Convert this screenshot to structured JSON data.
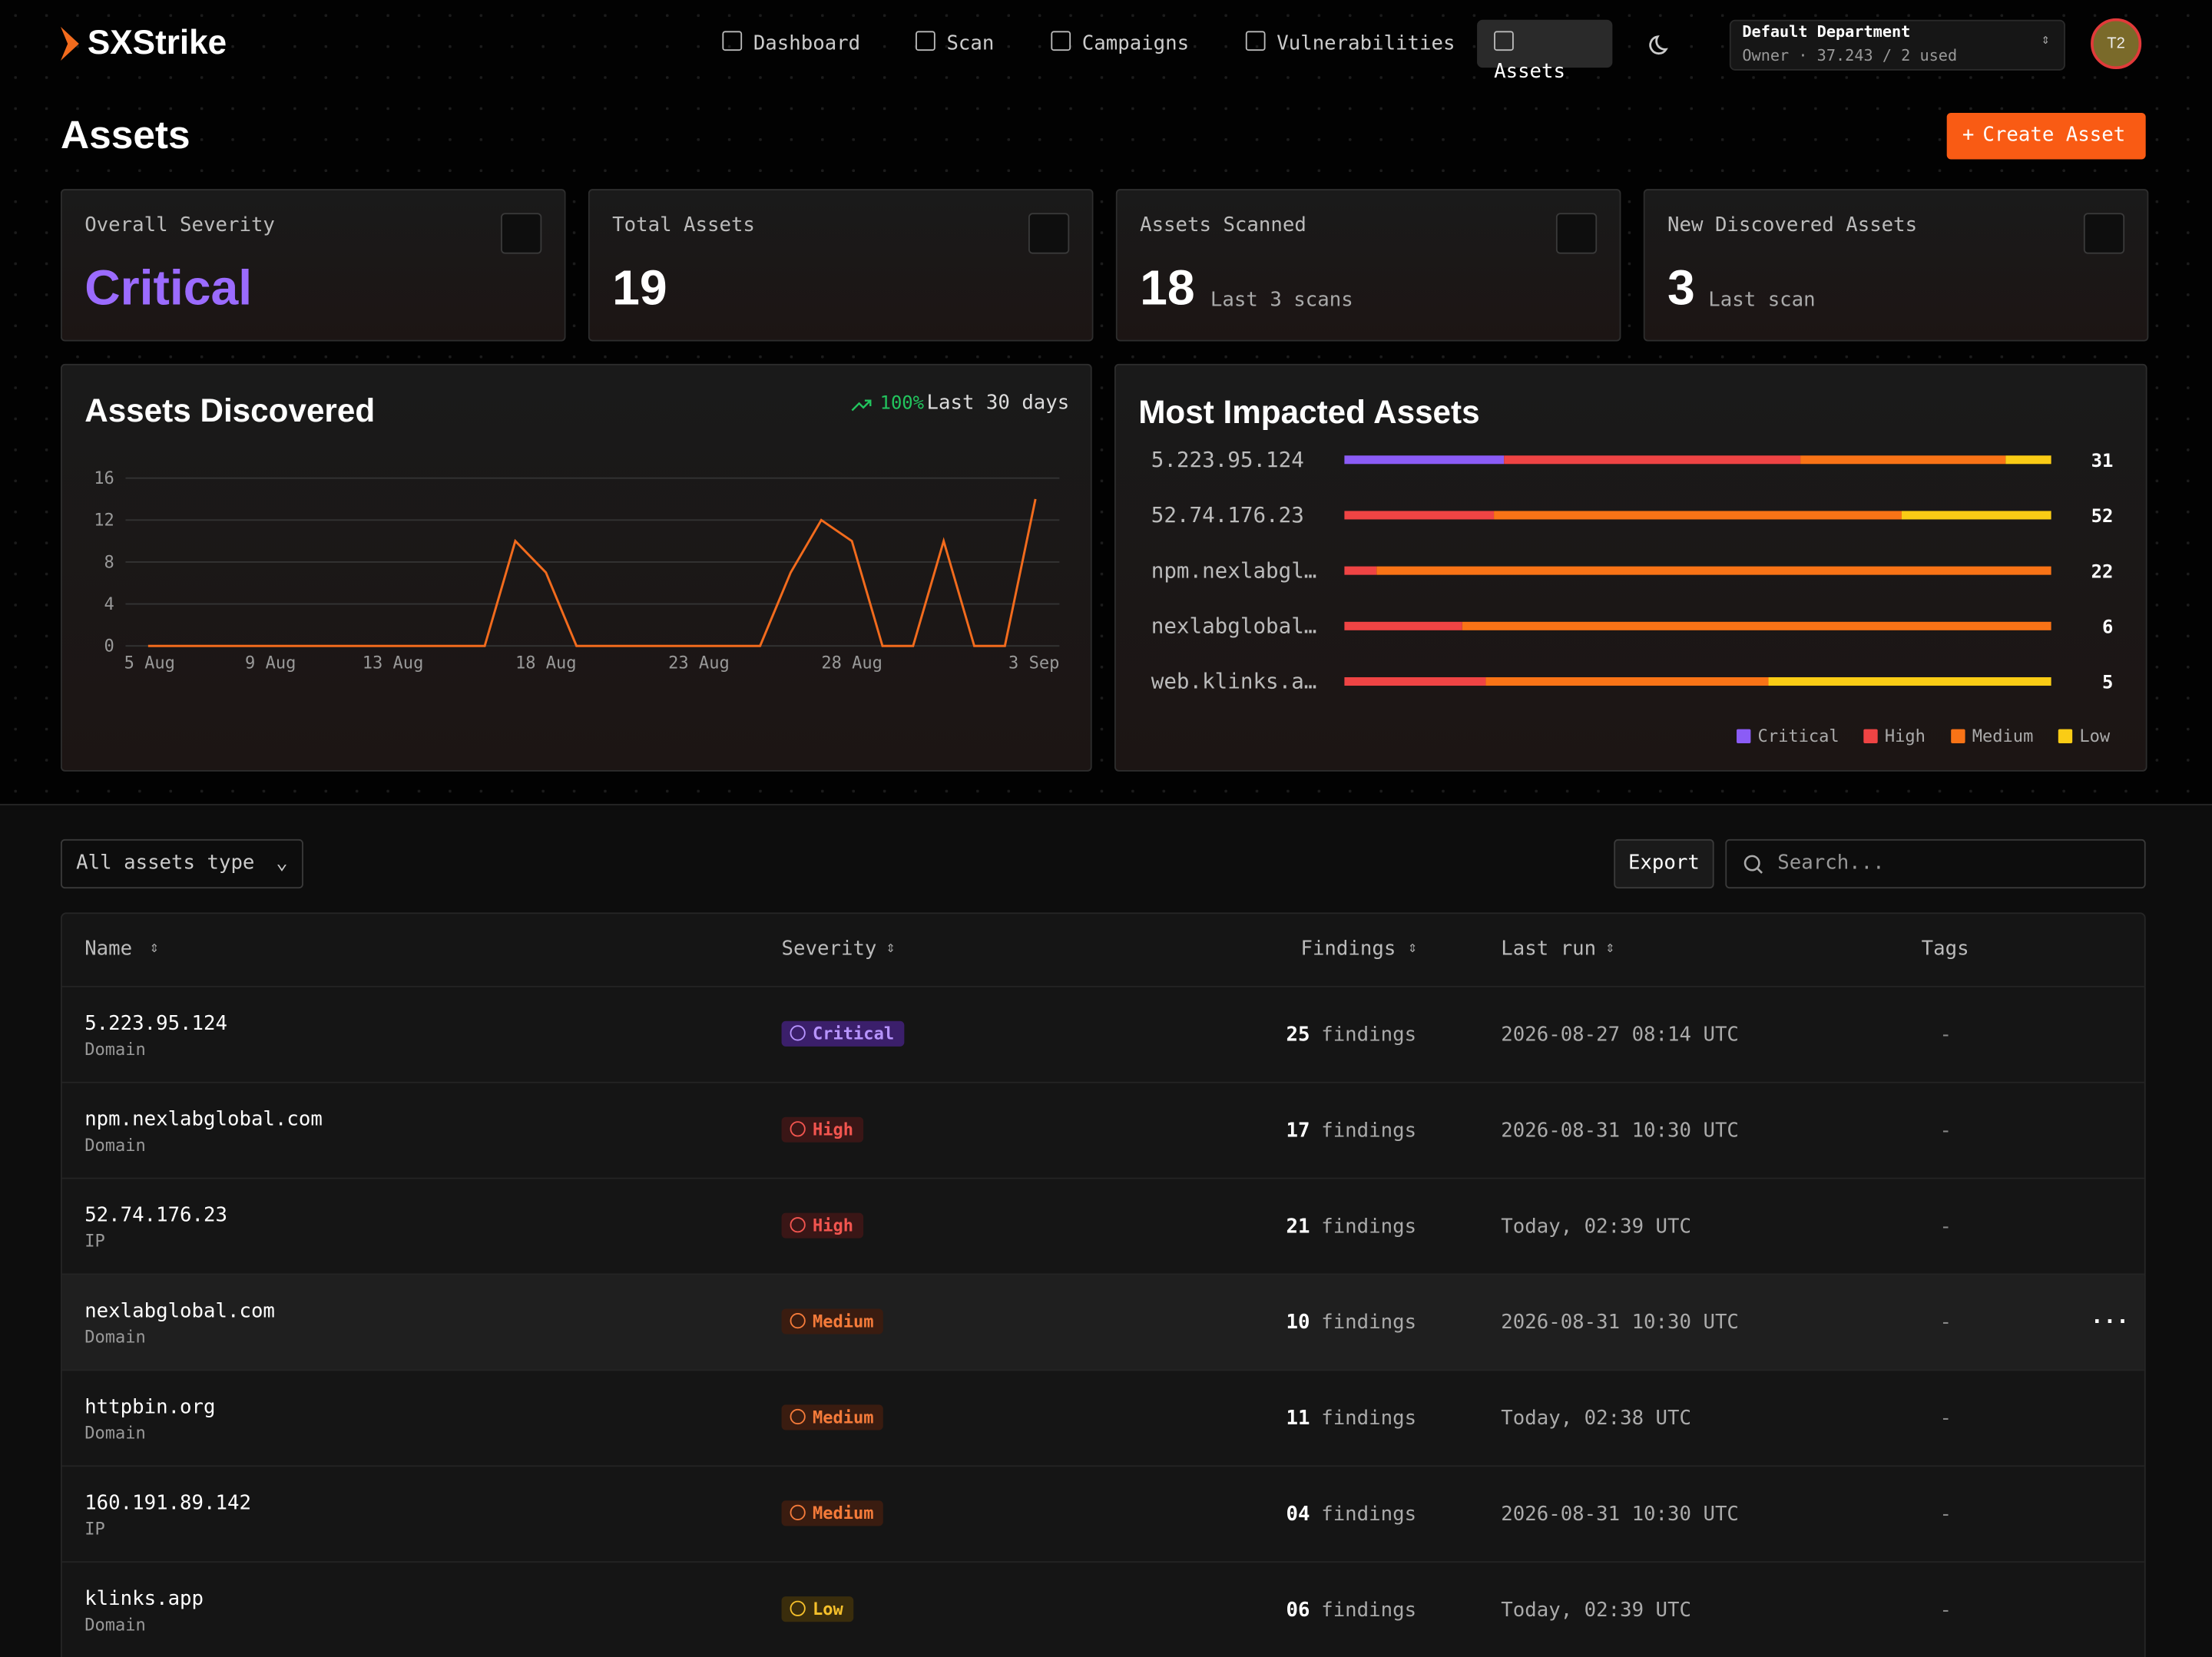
{
  "header": {
    "logo": "SXStrike",
    "nav": [
      "Dashboard",
      "Scan",
      "Campaigns",
      "Vulnerabilities",
      "Assets"
    ],
    "active_nav": "Assets",
    "department": "Default Department",
    "department_info": "Owner · 37.243 / 2 used",
    "avatar": "T2"
  },
  "page": {
    "title": "Assets",
    "create_button": "Create Asset"
  },
  "stats": [
    {
      "label": "Overall Severity",
      "value": "Critical"
    },
    {
      "label": "Total Assets",
      "value": "19"
    },
    {
      "label": "Assets Scanned",
      "value": "18",
      "note": "Last 3 scans"
    },
    {
      "label": "New Discovered Assets",
      "value": "3",
      "note": "Last scan"
    }
  ],
  "chart_data": [
    {
      "type": "line",
      "title": "Assets Discovered",
      "trend": "100%",
      "trend_note": "Last 30 days",
      "color": "#f26b1d",
      "categories": [
        "5 Aug",
        null,
        null,
        null,
        "9 Aug",
        null,
        null,
        null,
        "13 Aug",
        null,
        null,
        null,
        null,
        "18 Aug",
        null,
        null,
        null,
        null,
        "23 Aug",
        null,
        null,
        null,
        null,
        "28 Aug",
        null,
        null,
        null,
        null,
        null,
        "3 Sep"
      ],
      "values": [
        0,
        0,
        0,
        0,
        0,
        0,
        0,
        0,
        0,
        0,
        0,
        0,
        10,
        7,
        0,
        0,
        0,
        0,
        0,
        0,
        0,
        7,
        12,
        10,
        0,
        0,
        10,
        0,
        0,
        14
      ],
      "ylim": [
        0,
        16
      ],
      "yticks": [
        0,
        4,
        8,
        12,
        16
      ],
      "grid": true
    },
    {
      "type": "stacked_bar_horizontal",
      "title": "Most Impacted Assets",
      "legend": "bottom-right",
      "categories": [
        "5.223.95.124",
        "52.74.176.23",
        "npm.nexlabgl…",
        "nexlabglobal…",
        "web.klinks.a…"
      ],
      "series": [
        {
          "name": "Critical",
          "color": "#8b5cf6",
          "values": [
            7,
            0,
            0,
            0,
            0
          ]
        },
        {
          "name": "High",
          "color": "#ef4444",
          "values": [
            13,
            11,
            1,
            1,
            1
          ]
        },
        {
          "name": "Medium",
          "color": "#f97316",
          "values": [
            9,
            30,
            21,
            5,
            2
          ]
        },
        {
          "name": "Low",
          "color": "#facc15",
          "values": [
            2,
            11,
            0,
            0,
            2
          ]
        }
      ],
      "totals": [
        31,
        52,
        22,
        6,
        5
      ]
    }
  ],
  "toolbar": {
    "filter": "All assets type",
    "export": "Export",
    "search_placeholder": "Search..."
  },
  "table": {
    "columns": [
      "Name",
      "Severity",
      "Findings",
      "Last run",
      "Tags"
    ],
    "rows": [
      {
        "name": "5.223.95.124",
        "type": "Domain",
        "severity": "Critical",
        "findings": "25",
        "findings_unit": "findings",
        "last_run": "2026-08-27 08:14 UTC",
        "tags": "-"
      },
      {
        "name": "npm.nexlabglobal.com",
        "type": "Domain",
        "severity": "High",
        "findings": "17",
        "findings_unit": "findings",
        "last_run": "2026-08-31 10:30 UTC",
        "tags": "-"
      },
      {
        "name": "52.74.176.23",
        "type": "IP",
        "severity": "High",
        "findings": "21",
        "findings_unit": "findings",
        "last_run": "Today, 02:39 UTC",
        "tags": "-"
      },
      {
        "name": "nexlabglobal.com",
        "type": "Domain",
        "severity": "Medium",
        "findings": "10",
        "findings_unit": "findings",
        "last_run": "2026-08-31 10:30 UTC",
        "tags": "-",
        "actions": "···"
      },
      {
        "name": "httpbin.org",
        "type": "Domain",
        "severity": "Medium",
        "findings": "11",
        "findings_unit": "findings",
        "last_run": "Today, 02:38 UTC",
        "tags": "-"
      },
      {
        "name": "160.191.89.142",
        "type": "IP",
        "severity": "Medium",
        "findings": "04",
        "findings_unit": "findings",
        "last_run": "2026-08-31 10:30 UTC",
        "tags": "-"
      },
      {
        "name": "klinks.app",
        "type": "Domain",
        "severity": "Low",
        "findings": "06",
        "findings_unit": "findings",
        "last_run": "Today, 02:39 UTC",
        "tags": "-"
      }
    ]
  }
}
